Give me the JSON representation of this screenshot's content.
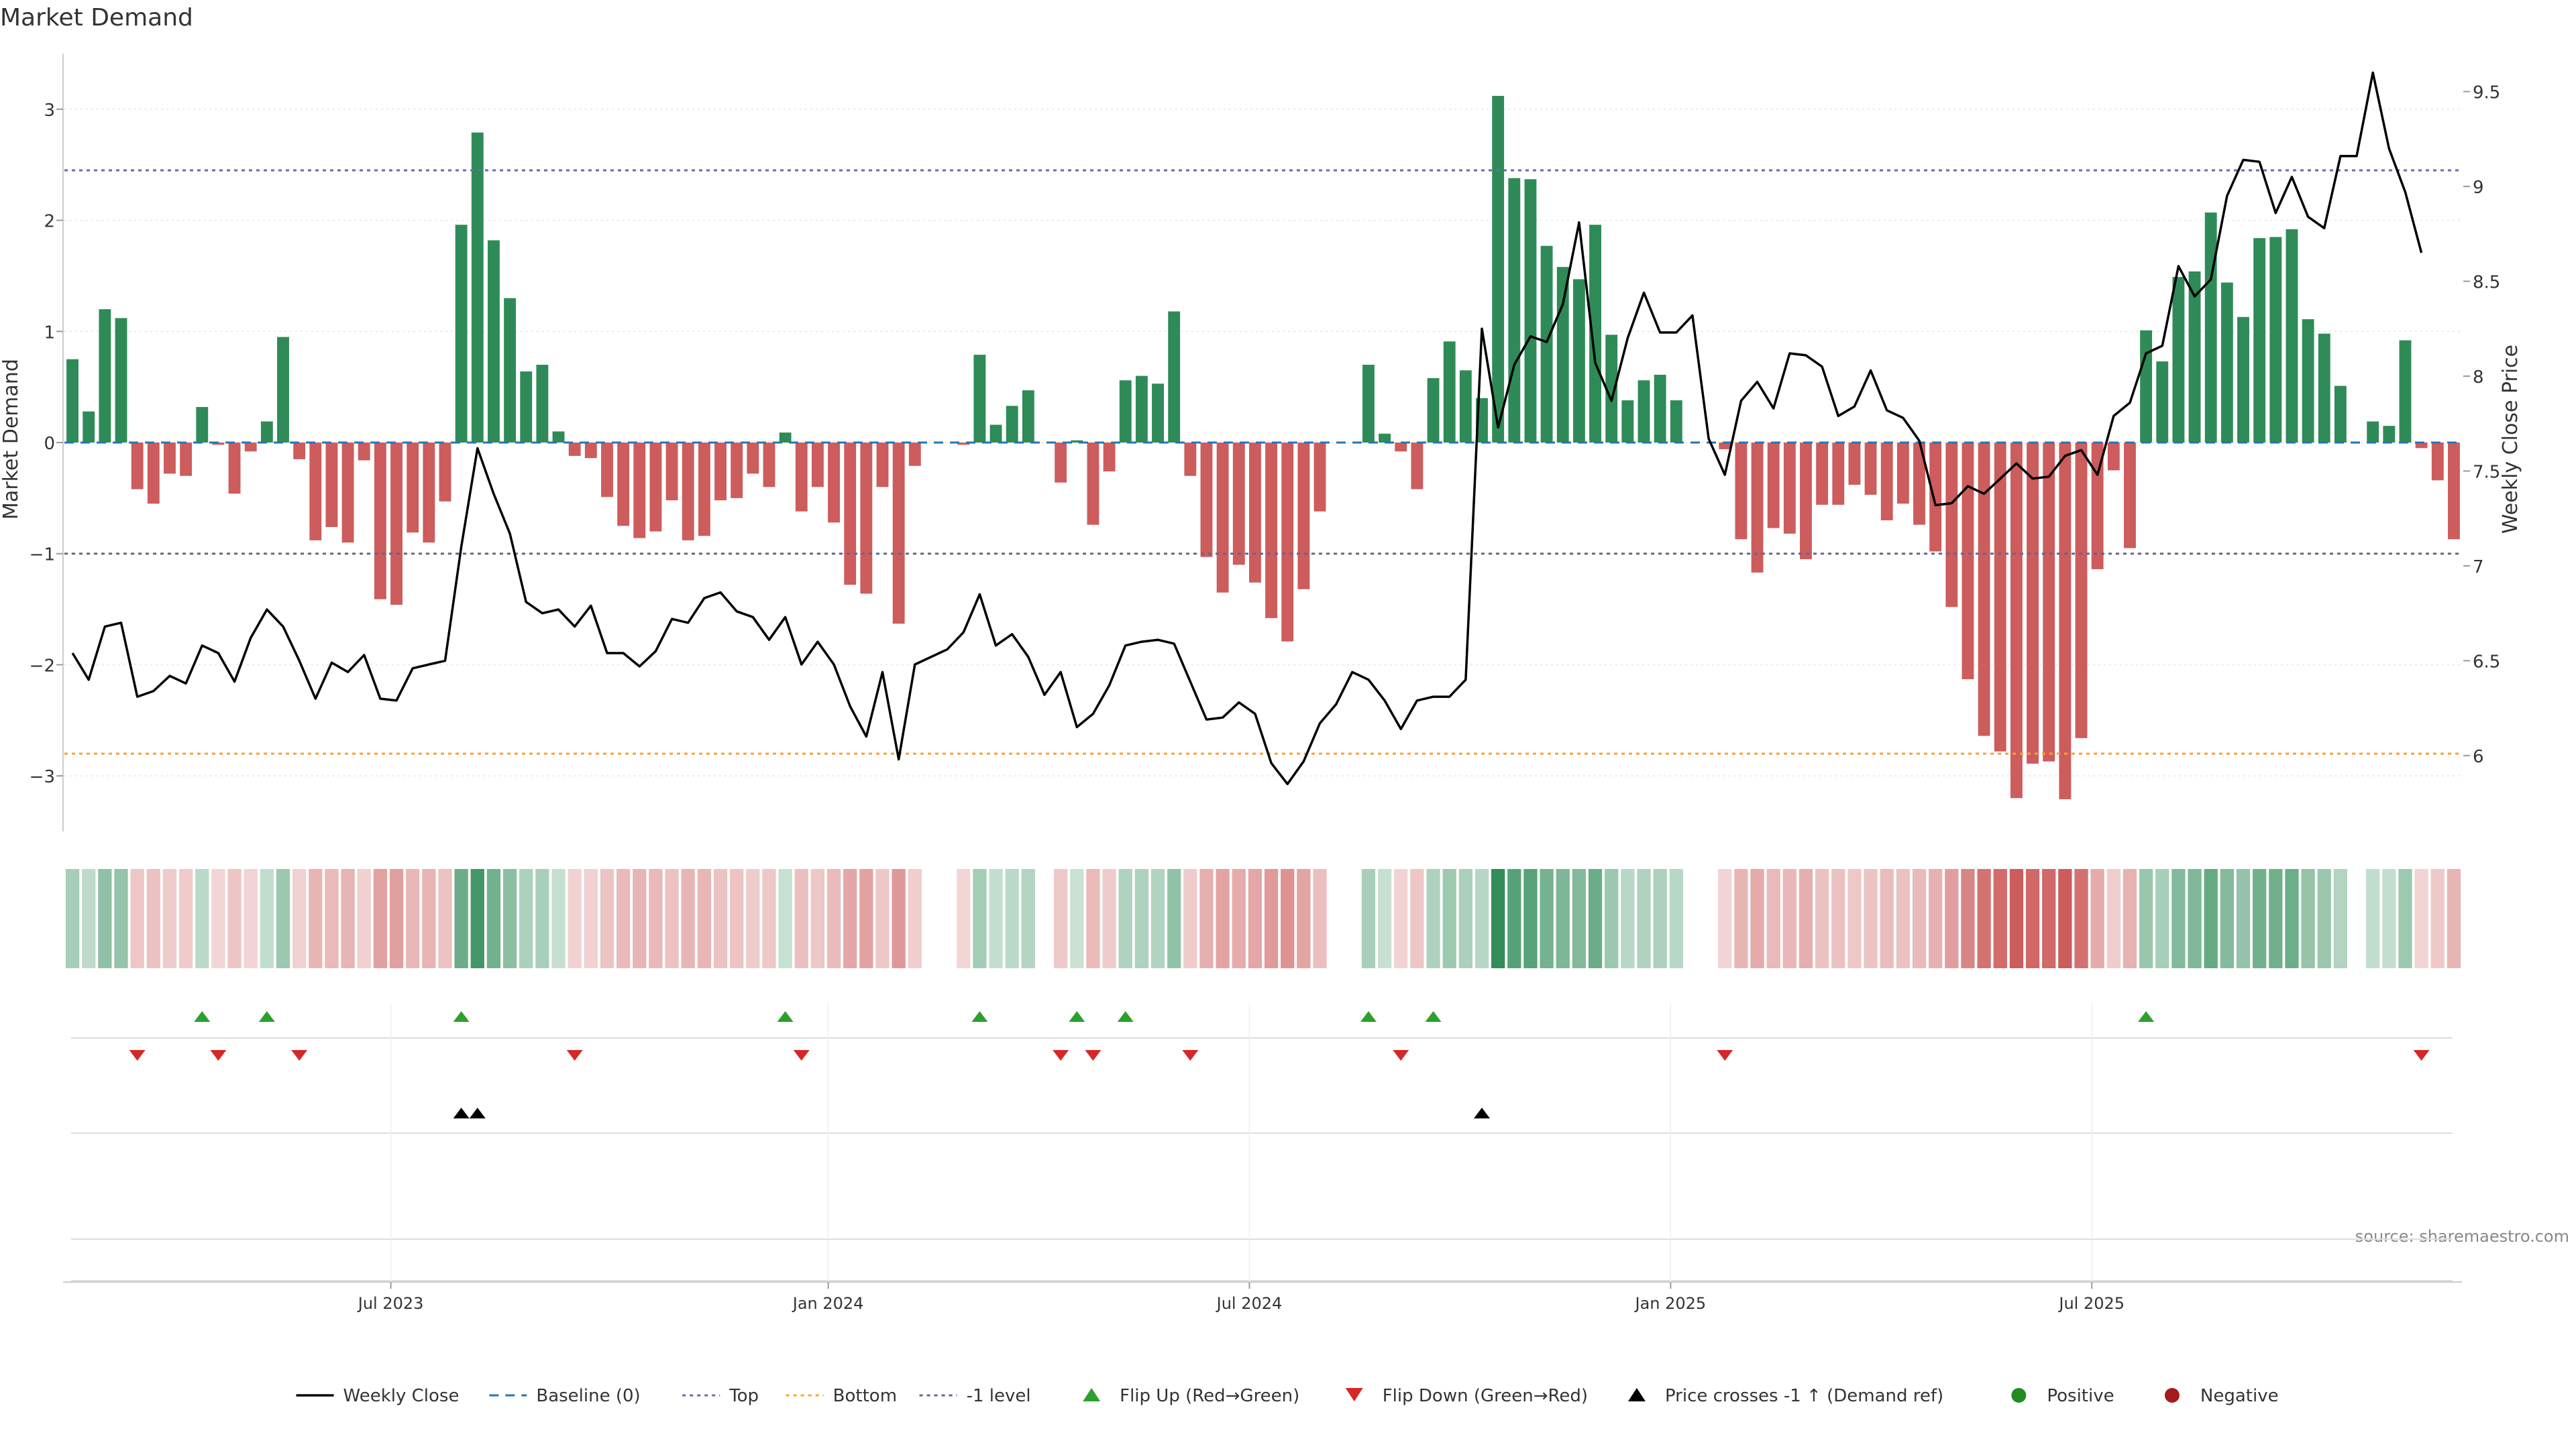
{
  "title": "Market Demand",
  "source": "source: sharemaestro.com",
  "colors": {
    "positive": "#2e8b57",
    "negative": "#cd5c5c",
    "price": "#000000",
    "top": "#6a6aa8",
    "bottom": "#ff9f2e",
    "minus_one": "#666688",
    "baseline": "#1f77b4",
    "flip_up": "#2ca02c",
    "flip_down": "#d62728",
    "grid": "#e6e6e6",
    "axis": "#cccccc"
  },
  "legend": [
    {
      "label": "Weekly Close",
      "icon": "line-solid-black"
    },
    {
      "label": "Baseline (0)",
      "icon": "line-dashed-blue"
    },
    {
      "label": "Top",
      "icon": "line-dotted-purple"
    },
    {
      "label": "Bottom",
      "icon": "line-dotted-orange"
    },
    {
      "label": "-1 level",
      "icon": "line-dotted-gray"
    },
    {
      "label": "Flip Up (Red→Green)",
      "icon": "triangle-up-green"
    },
    {
      "label": "Flip Down (Green→Red)",
      "icon": "triangle-down-red"
    },
    {
      "label": "Price crosses -1 ↑ (Demand ref)",
      "icon": "triangle-up-black"
    },
    {
      "label": "Positive",
      "icon": "dot-green"
    },
    {
      "label": "Negative",
      "icon": "dot-red"
    }
  ],
  "chart_data": {
    "type": "bar",
    "title": "Market Demand",
    "ylabel": "Market Demand",
    "y2label": "Weekly Close Price",
    "ylim": [
      -3.5,
      3.5
    ],
    "y2lim": [
      5.6,
      9.7
    ],
    "yticks": [
      3,
      2,
      1,
      0,
      -1,
      -2,
      -3
    ],
    "yticklabels": [
      "3",
      "2",
      "1",
      "0",
      "−1",
      "−2",
      "−3"
    ],
    "y2ticks": [
      9.5,
      9,
      8.5,
      8,
      7.5,
      7,
      6.5,
      6
    ],
    "y2ticklabels": [
      "9.5",
      "9",
      "8.5",
      "8",
      "7.5",
      "7",
      "6.5",
      "6"
    ],
    "xticklabels": [
      "Jul 2023",
      "Jan 2024",
      "Jul 2024",
      "Jan 2025",
      "Jul 2025"
    ],
    "reference_lines": {
      "top": 2.45,
      "bottom": -2.8,
      "minus_one": -1,
      "baseline": 0
    },
    "weeks": [
      "2023-02-12",
      "2023-02-19",
      "2023-02-26",
      "2023-03-05",
      "2023-03-12",
      "2023-03-19",
      "2023-03-26",
      "2023-04-02",
      "2023-04-09",
      "2023-04-16",
      "2023-04-23",
      "2023-04-30",
      "2023-05-07",
      "2023-05-14",
      "2023-05-21",
      "2023-05-28",
      "2023-06-04",
      "2023-06-11",
      "2023-06-18",
      "2023-06-25",
      "2023-07-02",
      "2023-07-09",
      "2023-07-16",
      "2023-07-23",
      "2023-07-30",
      "2023-08-06",
      "2023-08-13",
      "2023-08-20",
      "2023-08-27",
      "2023-09-03",
      "2023-09-10",
      "2023-09-17",
      "2023-09-24",
      "2023-10-01",
      "2023-10-08",
      "2023-10-15",
      "2023-10-22",
      "2023-10-29",
      "2023-11-05",
      "2023-11-12",
      "2023-11-19",
      "2023-11-26",
      "2023-12-03",
      "2023-12-10",
      "2023-12-17",
      "2023-12-24",
      "2023-12-31",
      "2024-01-07",
      "2024-01-14",
      "2024-01-21",
      "2024-01-28",
      "2024-02-04",
      "2024-02-11",
      "2024-02-18",
      "2024-02-25",
      "2024-03-03",
      "2024-03-10",
      "2024-03-17",
      "2024-03-24",
      "2024-03-31",
      "2024-04-07",
      "2024-04-14",
      "2024-04-21",
      "2024-04-28",
      "2024-05-05",
      "2024-05-12",
      "2024-05-19",
      "2024-05-26",
      "2024-06-02",
      "2024-06-09",
      "2024-06-16",
      "2024-06-23",
      "2024-06-30",
      "2024-07-07",
      "2024-07-14",
      "2024-07-21",
      "2024-07-28",
      "2024-08-04",
      "2024-08-11",
      "2024-08-18",
      "2024-08-25",
      "2024-09-01",
      "2024-09-08",
      "2024-09-15",
      "2024-09-22",
      "2024-09-29",
      "2024-10-06",
      "2024-10-13",
      "2024-10-20",
      "2024-10-27",
      "2024-11-03",
      "2024-11-10",
      "2024-11-17",
      "2024-11-24",
      "2024-12-01",
      "2024-12-08",
      "2024-12-15",
      "2024-12-22",
      "2024-12-29",
      "2025-01-05",
      "2025-01-12",
      "2025-01-19",
      "2025-01-26",
      "2025-02-02",
      "2025-02-09",
      "2025-02-16",
      "2025-02-23",
      "2025-03-02",
      "2025-03-09",
      "2025-03-16",
      "2025-03-23",
      "2025-03-30",
      "2025-04-06",
      "2025-04-13",
      "2025-04-20",
      "2025-04-27",
      "2025-05-04",
      "2025-05-11",
      "2025-05-18",
      "2025-05-25",
      "2025-06-01",
      "2025-06-08",
      "2025-06-15",
      "2025-06-22",
      "2025-06-29",
      "2025-07-06",
      "2025-07-13",
      "2025-07-20",
      "2025-07-27",
      "2025-08-03",
      "2025-08-10",
      "2025-08-17",
      "2025-08-24",
      "2025-08-31",
      "2025-09-07",
      "2025-09-14",
      "2025-09-21",
      "2025-09-28",
      "2025-10-05",
      "2025-10-12",
      "2025-10-19",
      "2025-10-26",
      "2025-11-02",
      "2025-11-09",
      "2025-11-16"
    ],
    "demand": [
      0.75,
      0.28,
      1.2,
      1.12,
      -0.42,
      -0.55,
      -0.28,
      -0.3,
      0.32,
      -0.02,
      -0.46,
      -0.08,
      0.19,
      0.95,
      -0.15,
      -0.88,
      -0.76,
      -0.9,
      -0.16,
      -1.41,
      -1.46,
      -0.81,
      -0.9,
      -0.53,
      1.96,
      2.79,
      1.82,
      1.3,
      0.64,
      0.7,
      0.1,
      -0.12,
      -0.14,
      -0.49,
      -0.75,
      -0.86,
      -0.8,
      -0.52,
      -0.88,
      -0.84,
      -0.52,
      -0.5,
      -0.28,
      -0.4,
      0.09,
      -0.62,
      -0.4,
      -0.72,
      -1.28,
      -1.36,
      -0.4,
      -1.63,
      -0.21,
      0.0,
      0.0,
      -0.02,
      0.79,
      0.16,
      0.33,
      0.47,
      0.0,
      -0.36,
      0.02,
      -0.74,
      -0.26,
      0.56,
      0.6,
      0.53,
      1.18,
      -0.3,
      -1.03,
      -1.35,
      -1.1,
      -1.26,
      -1.58,
      -1.79,
      -1.32,
      -0.62,
      0.0,
      0.0,
      0.7,
      0.08,
      -0.08,
      -0.42,
      0.58,
      0.91,
      0.65,
      0.4,
      3.12,
      2.38,
      2.37,
      1.77,
      1.58,
      1.47,
      1.96,
      0.97,
      0.38,
      0.56,
      0.61,
      0.38,
      0.0,
      0.0,
      -0.06,
      -0.87,
      -1.17,
      -0.77,
      -0.82,
      -1.05,
      -0.56,
      -0.56,
      -0.38,
      -0.47,
      -0.7,
      -0.55,
      -0.74,
      -0.98,
      -1.48,
      -2.13,
      -2.64,
      -2.78,
      -3.2,
      -2.89,
      -2.87,
      -3.21,
      -2.66,
      -1.14,
      -0.25,
      -0.95,
      1.01,
      0.73,
      1.49,
      1.54,
      2.07,
      1.44,
      1.13,
      1.84,
      1.85,
      1.92,
      1.11,
      0.98,
      0.51,
      0.0,
      0.19,
      0.15,
      0.92,
      -0.05,
      -0.34,
      -0.87
    ],
    "weekly_close": [
      6.54,
      6.4,
      6.68,
      6.7,
      6.31,
      6.34,
      6.42,
      6.38,
      6.58,
      6.54,
      6.39,
      6.62,
      6.77,
      6.68,
      6.5,
      6.3,
      6.49,
      6.44,
      6.53,
      6.3,
      6.29,
      6.46,
      6.48,
      6.5,
      7.1,
      7.62,
      7.38,
      7.17,
      6.81,
      6.75,
      6.77,
      6.68,
      6.79,
      6.54,
      6.54,
      6.47,
      6.55,
      6.72,
      6.7,
      6.83,
      6.86,
      6.76,
      6.73,
      6.61,
      6.73,
      6.48,
      6.6,
      6.48,
      6.26,
      6.1,
      6.44,
      5.98,
      6.48,
      6.52,
      6.56,
      6.65,
      6.85,
      6.58,
      6.64,
      6.52,
      6.32,
      6.44,
      6.15,
      6.22,
      6.37,
      6.58,
      6.6,
      6.61,
      6.59,
      6.39,
      6.19,
      6.2,
      6.28,
      6.22,
      5.96,
      5.85,
      5.97,
      6.17,
      6.27,
      6.44,
      6.4,
      6.29,
      6.14,
      6.29,
      6.31,
      6.31,
      6.4,
      8.25,
      7.73,
      8.06,
      8.21,
      8.18,
      8.38,
      8.81,
      8.07,
      7.87,
      8.2,
      8.44,
      8.23,
      8.23,
      8.32,
      7.67,
      7.48,
      7.87,
      7.97,
      7.83,
      8.12,
      8.11,
      8.05,
      7.79,
      7.84,
      8.03,
      7.82,
      7.78,
      7.66,
      7.32,
      7.33,
      7.42,
      7.38,
      7.46,
      7.54,
      7.46,
      7.47,
      7.58,
      7.61,
      7.48,
      7.79,
      7.86,
      8.12,
      8.16,
      8.58,
      8.42,
      8.51,
      8.95,
      9.14,
      9.13,
      8.86,
      9.05,
      8.84,
      8.78,
      9.16,
      9.16,
      9.6,
      9.2,
      8.97,
      8.65
    ]
  }
}
